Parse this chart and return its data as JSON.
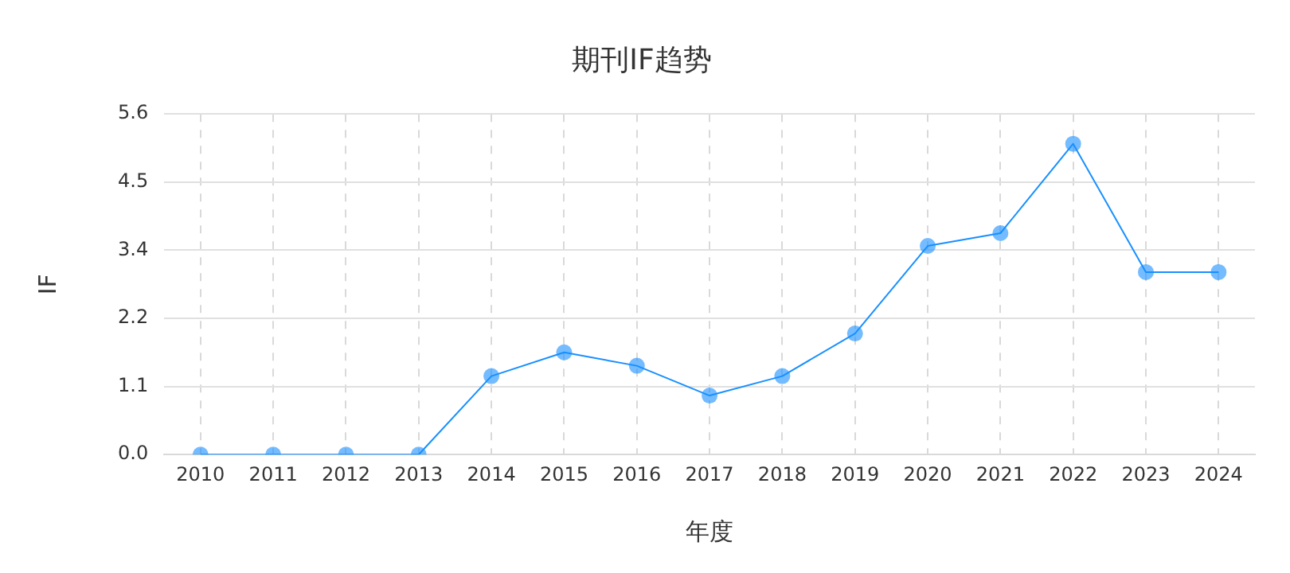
{
  "chart_data": {
    "type": "line",
    "title": "期刊IF趋势",
    "xlabel": "年度",
    "ylabel": "IF",
    "categories": [
      "2010",
      "2011",
      "2012",
      "2013",
      "2014",
      "2015",
      "2016",
      "2017",
      "2018",
      "2019",
      "2020",
      "2021",
      "2022",
      "2023",
      "2024"
    ],
    "series": [
      {
        "color": "#1890ff",
        "values": [
          0,
          0,
          0,
          0,
          1.29,
          1.68,
          1.46,
          0.97,
          1.29,
          1.99,
          3.43,
          3.64,
          5.11,
          3.0,
          3.0
        ]
      }
    ],
    "ylim": [
      0,
      5.6
    ],
    "yticks": [
      {
        "value": 0,
        "label": "0.0"
      },
      {
        "value": 1.12,
        "label": "1.1"
      },
      {
        "value": 2.24,
        "label": "2.2"
      },
      {
        "value": 3.36,
        "label": "3.4"
      },
      {
        "value": 4.48,
        "label": "4.5"
      },
      {
        "value": 5.6,
        "label": "5.6"
      }
    ],
    "grid": true,
    "marker": "circle",
    "line_style": "solid",
    "legend": false
  }
}
